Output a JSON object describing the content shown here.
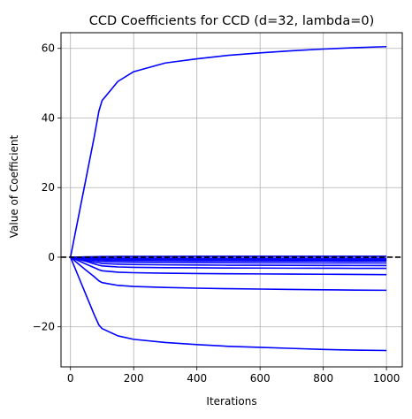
{
  "chart_data": {
    "type": "line",
    "title": "CCD Coefficients for CCD (d=32, lambda=0)",
    "xlabel": "Iterations",
    "ylabel": "Value of Coefficient",
    "xlim": [
      -30,
      1050
    ],
    "ylim": [
      -31.5,
      64.5
    ],
    "xticks": [
      0,
      200,
      400,
      600,
      800,
      1000
    ],
    "xtick_labels": [
      "0",
      "200",
      "400",
      "600",
      "800",
      "1000"
    ],
    "yticks": [
      -20,
      0,
      20,
      40,
      60
    ],
    "ytick_labels": [
      "−20",
      "0",
      "20",
      "40",
      "60"
    ],
    "grid": true,
    "reference_line": {
      "y": 0,
      "style": "dashed",
      "color": "#000000"
    },
    "series_color": "#0000ff",
    "x": [
      0,
      25,
      50,
      75,
      90,
      100,
      150,
      200,
      300,
      400,
      500,
      600,
      700,
      800,
      900,
      1000
    ],
    "series": [
      {
        "values": [
          0,
          11.5,
          23,
          34.5,
          42,
          45,
          50.5,
          53.3,
          55.8,
          57.0,
          58.0,
          58.7,
          59.3,
          59.8,
          60.2,
          60.5
        ]
      },
      {
        "values": [
          0,
          -5.5,
          -11,
          -16.5,
          -19.5,
          -20.5,
          -22.6,
          -23.6,
          -24.5,
          -25.1,
          -25.6,
          -25.9,
          -26.2,
          -26.5,
          -26.7,
          -26.8
        ]
      },
      {
        "values": [
          0,
          -1.9,
          -3.8,
          -5.6,
          -6.8,
          -7.3,
          -8.1,
          -8.4,
          -8.7,
          -8.9,
          -9.05,
          -9.15,
          -9.25,
          -9.35,
          -9.45,
          -9.5
        ]
      },
      {
        "values": [
          0,
          -1.0,
          -2.0,
          -3.0,
          -3.6,
          -3.9,
          -4.3,
          -4.45,
          -4.6,
          -4.7,
          -4.75,
          -4.8,
          -4.85,
          -4.9,
          -4.95,
          -5.0
        ]
      },
      {
        "values": [
          0,
          -0.6,
          -1.2,
          -1.9,
          -2.3,
          -2.5,
          -2.8,
          -2.9,
          -3.0,
          -3.05,
          -3.1,
          -3.12,
          -3.15,
          -3.17,
          -3.19,
          -3.2
        ]
      },
      {
        "values": [
          0,
          -0.45,
          -0.9,
          -1.35,
          -1.6,
          -1.8,
          -2.0,
          -2.1,
          -2.2,
          -2.25,
          -2.3,
          -2.32,
          -2.35,
          -2.37,
          -2.39,
          -2.4
        ]
      },
      {
        "values": [
          0,
          -0.3,
          -0.6,
          -0.9,
          -1.1,
          -1.2,
          -1.35,
          -1.42,
          -1.5,
          -1.55,
          -1.58,
          -1.6,
          -1.62,
          -1.64,
          -1.65,
          -1.66
        ]
      },
      {
        "values": [
          0,
          -0.2,
          -0.4,
          -0.6,
          -0.72,
          -0.8,
          -0.9,
          -0.95,
          -1.0,
          -1.03,
          -1.05,
          -1.07,
          -1.08,
          -1.09,
          -1.1,
          -1.1
        ]
      },
      {
        "values": [
          0,
          -0.12,
          -0.25,
          -0.37,
          -0.45,
          -0.5,
          -0.56,
          -0.6,
          -0.63,
          -0.65,
          -0.66,
          -0.67,
          -0.68,
          -0.69,
          -0.7,
          -0.7
        ]
      },
      {
        "values": [
          0,
          -0.06,
          -0.12,
          -0.18,
          -0.22,
          -0.25,
          -0.28,
          -0.3,
          -0.32,
          -0.33,
          -0.34,
          -0.34,
          -0.35,
          -0.35,
          -0.35,
          -0.35
        ]
      },
      {
        "values": [
          0,
          0.05,
          0.1,
          0.15,
          0.18,
          0.2,
          0.22,
          0.23,
          0.24,
          0.25,
          0.25,
          0.26,
          0.26,
          0.26,
          0.26,
          0.26
        ]
      }
    ]
  }
}
